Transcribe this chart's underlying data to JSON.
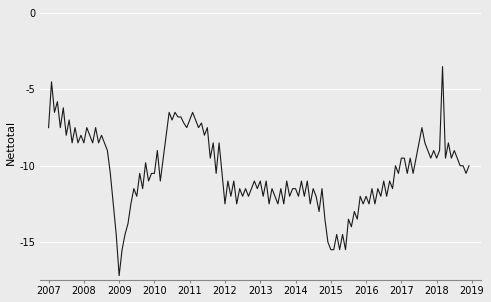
{
  "ylabel": "Nettotal",
  "ylim": [
    -17.5,
    0.5
  ],
  "yticks": [
    0,
    -5,
    -10,
    -15
  ],
  "xlim": [
    2006.75,
    2019.25
  ],
  "xticks": [
    2007,
    2008,
    2009,
    2010,
    2011,
    2012,
    2013,
    2014,
    2015,
    2016,
    2017,
    2018,
    2019
  ],
  "line_color": "#1a1a1a",
  "line_width": 0.8,
  "background_color": "#ebebeb",
  "grid_color": "#ffffff",
  "data": [
    [
      2007.0,
      -7.5
    ],
    [
      2007.083,
      -4.5
    ],
    [
      2007.167,
      -6.5
    ],
    [
      2007.25,
      -5.8
    ],
    [
      2007.333,
      -7.5
    ],
    [
      2007.417,
      -6.2
    ],
    [
      2007.5,
      -8.0
    ],
    [
      2007.583,
      -7.0
    ],
    [
      2007.667,
      -8.5
    ],
    [
      2007.75,
      -7.5
    ],
    [
      2007.833,
      -8.5
    ],
    [
      2007.917,
      -8.0
    ],
    [
      2008.0,
      -8.5
    ],
    [
      2008.083,
      -7.5
    ],
    [
      2008.167,
      -8.0
    ],
    [
      2008.25,
      -8.5
    ],
    [
      2008.333,
      -7.5
    ],
    [
      2008.417,
      -8.5
    ],
    [
      2008.5,
      -8.0
    ],
    [
      2008.583,
      -8.5
    ],
    [
      2008.667,
      -9.0
    ],
    [
      2008.75,
      -10.5
    ],
    [
      2008.833,
      -12.5
    ],
    [
      2008.917,
      -14.5
    ],
    [
      2009.0,
      -17.2
    ],
    [
      2009.083,
      -15.5
    ],
    [
      2009.167,
      -14.5
    ],
    [
      2009.25,
      -13.8
    ],
    [
      2009.333,
      -12.5
    ],
    [
      2009.417,
      -11.5
    ],
    [
      2009.5,
      -12.0
    ],
    [
      2009.583,
      -10.5
    ],
    [
      2009.667,
      -11.5
    ],
    [
      2009.75,
      -9.8
    ],
    [
      2009.833,
      -11.0
    ],
    [
      2009.917,
      -10.5
    ],
    [
      2010.0,
      -10.5
    ],
    [
      2010.083,
      -9.0
    ],
    [
      2010.167,
      -11.0
    ],
    [
      2010.25,
      -9.5
    ],
    [
      2010.333,
      -8.0
    ],
    [
      2010.417,
      -6.5
    ],
    [
      2010.5,
      -7.0
    ],
    [
      2010.583,
      -6.5
    ],
    [
      2010.667,
      -6.8
    ],
    [
      2010.75,
      -6.8
    ],
    [
      2010.833,
      -7.2
    ],
    [
      2010.917,
      -7.5
    ],
    [
      2011.0,
      -7.0
    ],
    [
      2011.083,
      -6.5
    ],
    [
      2011.167,
      -7.0
    ],
    [
      2011.25,
      -7.5
    ],
    [
      2011.333,
      -7.2
    ],
    [
      2011.417,
      -8.0
    ],
    [
      2011.5,
      -7.5
    ],
    [
      2011.583,
      -9.5
    ],
    [
      2011.667,
      -8.5
    ],
    [
      2011.75,
      -10.5
    ],
    [
      2011.833,
      -8.5
    ],
    [
      2011.917,
      -10.5
    ],
    [
      2012.0,
      -12.5
    ],
    [
      2012.083,
      -11.0
    ],
    [
      2012.167,
      -12.0
    ],
    [
      2012.25,
      -11.0
    ],
    [
      2012.333,
      -12.5
    ],
    [
      2012.417,
      -11.5
    ],
    [
      2012.5,
      -12.0
    ],
    [
      2012.583,
      -11.5
    ],
    [
      2012.667,
      -12.0
    ],
    [
      2012.75,
      -11.5
    ],
    [
      2012.833,
      -11.0
    ],
    [
      2012.917,
      -11.5
    ],
    [
      2013.0,
      -11.0
    ],
    [
      2013.083,
      -12.0
    ],
    [
      2013.167,
      -11.0
    ],
    [
      2013.25,
      -12.5
    ],
    [
      2013.333,
      -11.5
    ],
    [
      2013.417,
      -12.0
    ],
    [
      2013.5,
      -12.5
    ],
    [
      2013.583,
      -11.5
    ],
    [
      2013.667,
      -12.5
    ],
    [
      2013.75,
      -11.0
    ],
    [
      2013.833,
      -12.0
    ],
    [
      2013.917,
      -11.5
    ],
    [
      2014.0,
      -11.5
    ],
    [
      2014.083,
      -12.0
    ],
    [
      2014.167,
      -11.0
    ],
    [
      2014.25,
      -12.0
    ],
    [
      2014.333,
      -11.0
    ],
    [
      2014.417,
      -12.5
    ],
    [
      2014.5,
      -11.5
    ],
    [
      2014.583,
      -12.0
    ],
    [
      2014.667,
      -13.0
    ],
    [
      2014.75,
      -11.5
    ],
    [
      2014.833,
      -13.5
    ],
    [
      2014.917,
      -15.0
    ],
    [
      2015.0,
      -15.5
    ],
    [
      2015.083,
      -15.5
    ],
    [
      2015.167,
      -14.5
    ],
    [
      2015.25,
      -15.5
    ],
    [
      2015.333,
      -14.5
    ],
    [
      2015.417,
      -15.5
    ],
    [
      2015.5,
      -13.5
    ],
    [
      2015.583,
      -14.0
    ],
    [
      2015.667,
      -13.0
    ],
    [
      2015.75,
      -13.5
    ],
    [
      2015.833,
      -12.0
    ],
    [
      2015.917,
      -12.5
    ],
    [
      2016.0,
      -12.0
    ],
    [
      2016.083,
      -12.5
    ],
    [
      2016.167,
      -11.5
    ],
    [
      2016.25,
      -12.5
    ],
    [
      2016.333,
      -11.5
    ],
    [
      2016.417,
      -12.0
    ],
    [
      2016.5,
      -11.0
    ],
    [
      2016.583,
      -12.0
    ],
    [
      2016.667,
      -11.0
    ],
    [
      2016.75,
      -11.5
    ],
    [
      2016.833,
      -10.0
    ],
    [
      2016.917,
      -10.5
    ],
    [
      2017.0,
      -9.5
    ],
    [
      2017.083,
      -9.5
    ],
    [
      2017.167,
      -10.5
    ],
    [
      2017.25,
      -9.5
    ],
    [
      2017.333,
      -10.5
    ],
    [
      2017.417,
      -9.5
    ],
    [
      2017.5,
      -8.5
    ],
    [
      2017.583,
      -7.5
    ],
    [
      2017.667,
      -8.5
    ],
    [
      2017.75,
      -9.0
    ],
    [
      2017.833,
      -9.5
    ],
    [
      2017.917,
      -9.0
    ],
    [
      2018.0,
      -9.5
    ],
    [
      2018.083,
      -9.0
    ],
    [
      2018.167,
      -3.5
    ],
    [
      2018.25,
      -9.5
    ],
    [
      2018.333,
      -8.5
    ],
    [
      2018.417,
      -9.5
    ],
    [
      2018.5,
      -9.0
    ],
    [
      2018.583,
      -9.5
    ],
    [
      2018.667,
      -10.0
    ],
    [
      2018.75,
      -10.0
    ],
    [
      2018.833,
      -10.5
    ],
    [
      2018.917,
      -10.0
    ]
  ]
}
